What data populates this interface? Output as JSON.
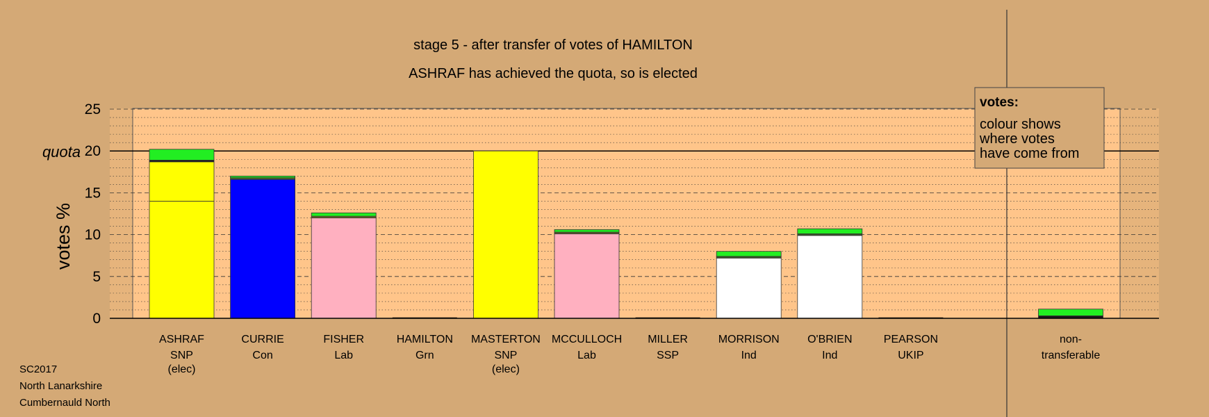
{
  "chart_data": {
    "type": "bar",
    "title": "stage 5 - after transfer of votes of HAMILTON",
    "subtitle": "ASHRAF has achieved the quota, so is elected",
    "ylabel": "votes %",
    "quota_label": "quota",
    "quota_value": 20,
    "ylim": [
      0,
      25
    ],
    "yticks": [
      0,
      5,
      10,
      15,
      20,
      25
    ],
    "grid": "dashed every 5, dotted every 1",
    "legend": {
      "title": "votes:",
      "lines": [
        "colour shows",
        "where votes",
        "have come from"
      ],
      "position": "top-right"
    },
    "categories": [
      {
        "name": "ASHRAF",
        "party": "SNP",
        "note": "(elec)"
      },
      {
        "name": "CURRIE",
        "party": "Con",
        "note": ""
      },
      {
        "name": "FISHER",
        "party": "Lab",
        "note": ""
      },
      {
        "name": "HAMILTON",
        "party": "Grn",
        "note": ""
      },
      {
        "name": "MASTERTON",
        "party": "SNP",
        "note": "(elec)"
      },
      {
        "name": "MCCULLOCH",
        "party": "Lab",
        "note": ""
      },
      {
        "name": "MILLER",
        "party": "SSP",
        "note": ""
      },
      {
        "name": "MORRISON",
        "party": "Ind",
        "note": ""
      },
      {
        "name": "O'BRIEN",
        "party": "Ind",
        "note": ""
      },
      {
        "name": "PEARSON",
        "party": "UKIP",
        "note": ""
      }
    ],
    "nontransferable": {
      "label_line1": "non-",
      "label_line2": "transferable"
    },
    "stacks": [
      [
        {
          "value": 14.0,
          "color": "#ffff00"
        },
        {
          "value": 4.7,
          "color": "#ffff00"
        },
        {
          "value": 0.2,
          "color": "#1a1a1a"
        },
        {
          "value": 1.3,
          "color": "#22ee22"
        }
      ],
      [
        {
          "value": 16.6,
          "color": "#0000ff"
        },
        {
          "value": 0.2,
          "color": "#4a6a28"
        },
        {
          "value": 0.2,
          "color": "#22ee22"
        }
      ],
      [
        {
          "value": 12.0,
          "color": "#ffb0c0"
        },
        {
          "value": 0.2,
          "color": "#6a6a28"
        },
        {
          "value": 0.4,
          "color": "#22ee22"
        }
      ],
      [],
      [
        {
          "value": 20.0,
          "color": "#ffff00"
        }
      ],
      [
        {
          "value": 10.1,
          "color": "#ffb0c0"
        },
        {
          "value": 0.2,
          "color": "#5a5a28"
        },
        {
          "value": 0.3,
          "color": "#22ee22"
        }
      ],
      [],
      [
        {
          "value": 7.2,
          "color": "#ffffff"
        },
        {
          "value": 0.2,
          "color": "#3a5a28"
        },
        {
          "value": 0.6,
          "color": "#22ee22"
        }
      ],
      [
        {
          "value": 9.9,
          "color": "#ffffff"
        },
        {
          "value": 0.2,
          "color": "#3a5a28"
        },
        {
          "value": 0.6,
          "color": "#22ee22"
        }
      ],
      [],
      [
        {
          "value": 0.3,
          "color": "#1a1a1a"
        },
        {
          "value": 0.8,
          "color": "#22ee22"
        }
      ]
    ]
  },
  "footer": {
    "line1": "SC2017",
    "line2": "North Lanarkshire",
    "line3": "Cumbernauld North"
  },
  "colors": {
    "page_background": "#d4a976",
    "plot_background": "#ffc58a",
    "transfer_green": "#22ee22"
  }
}
